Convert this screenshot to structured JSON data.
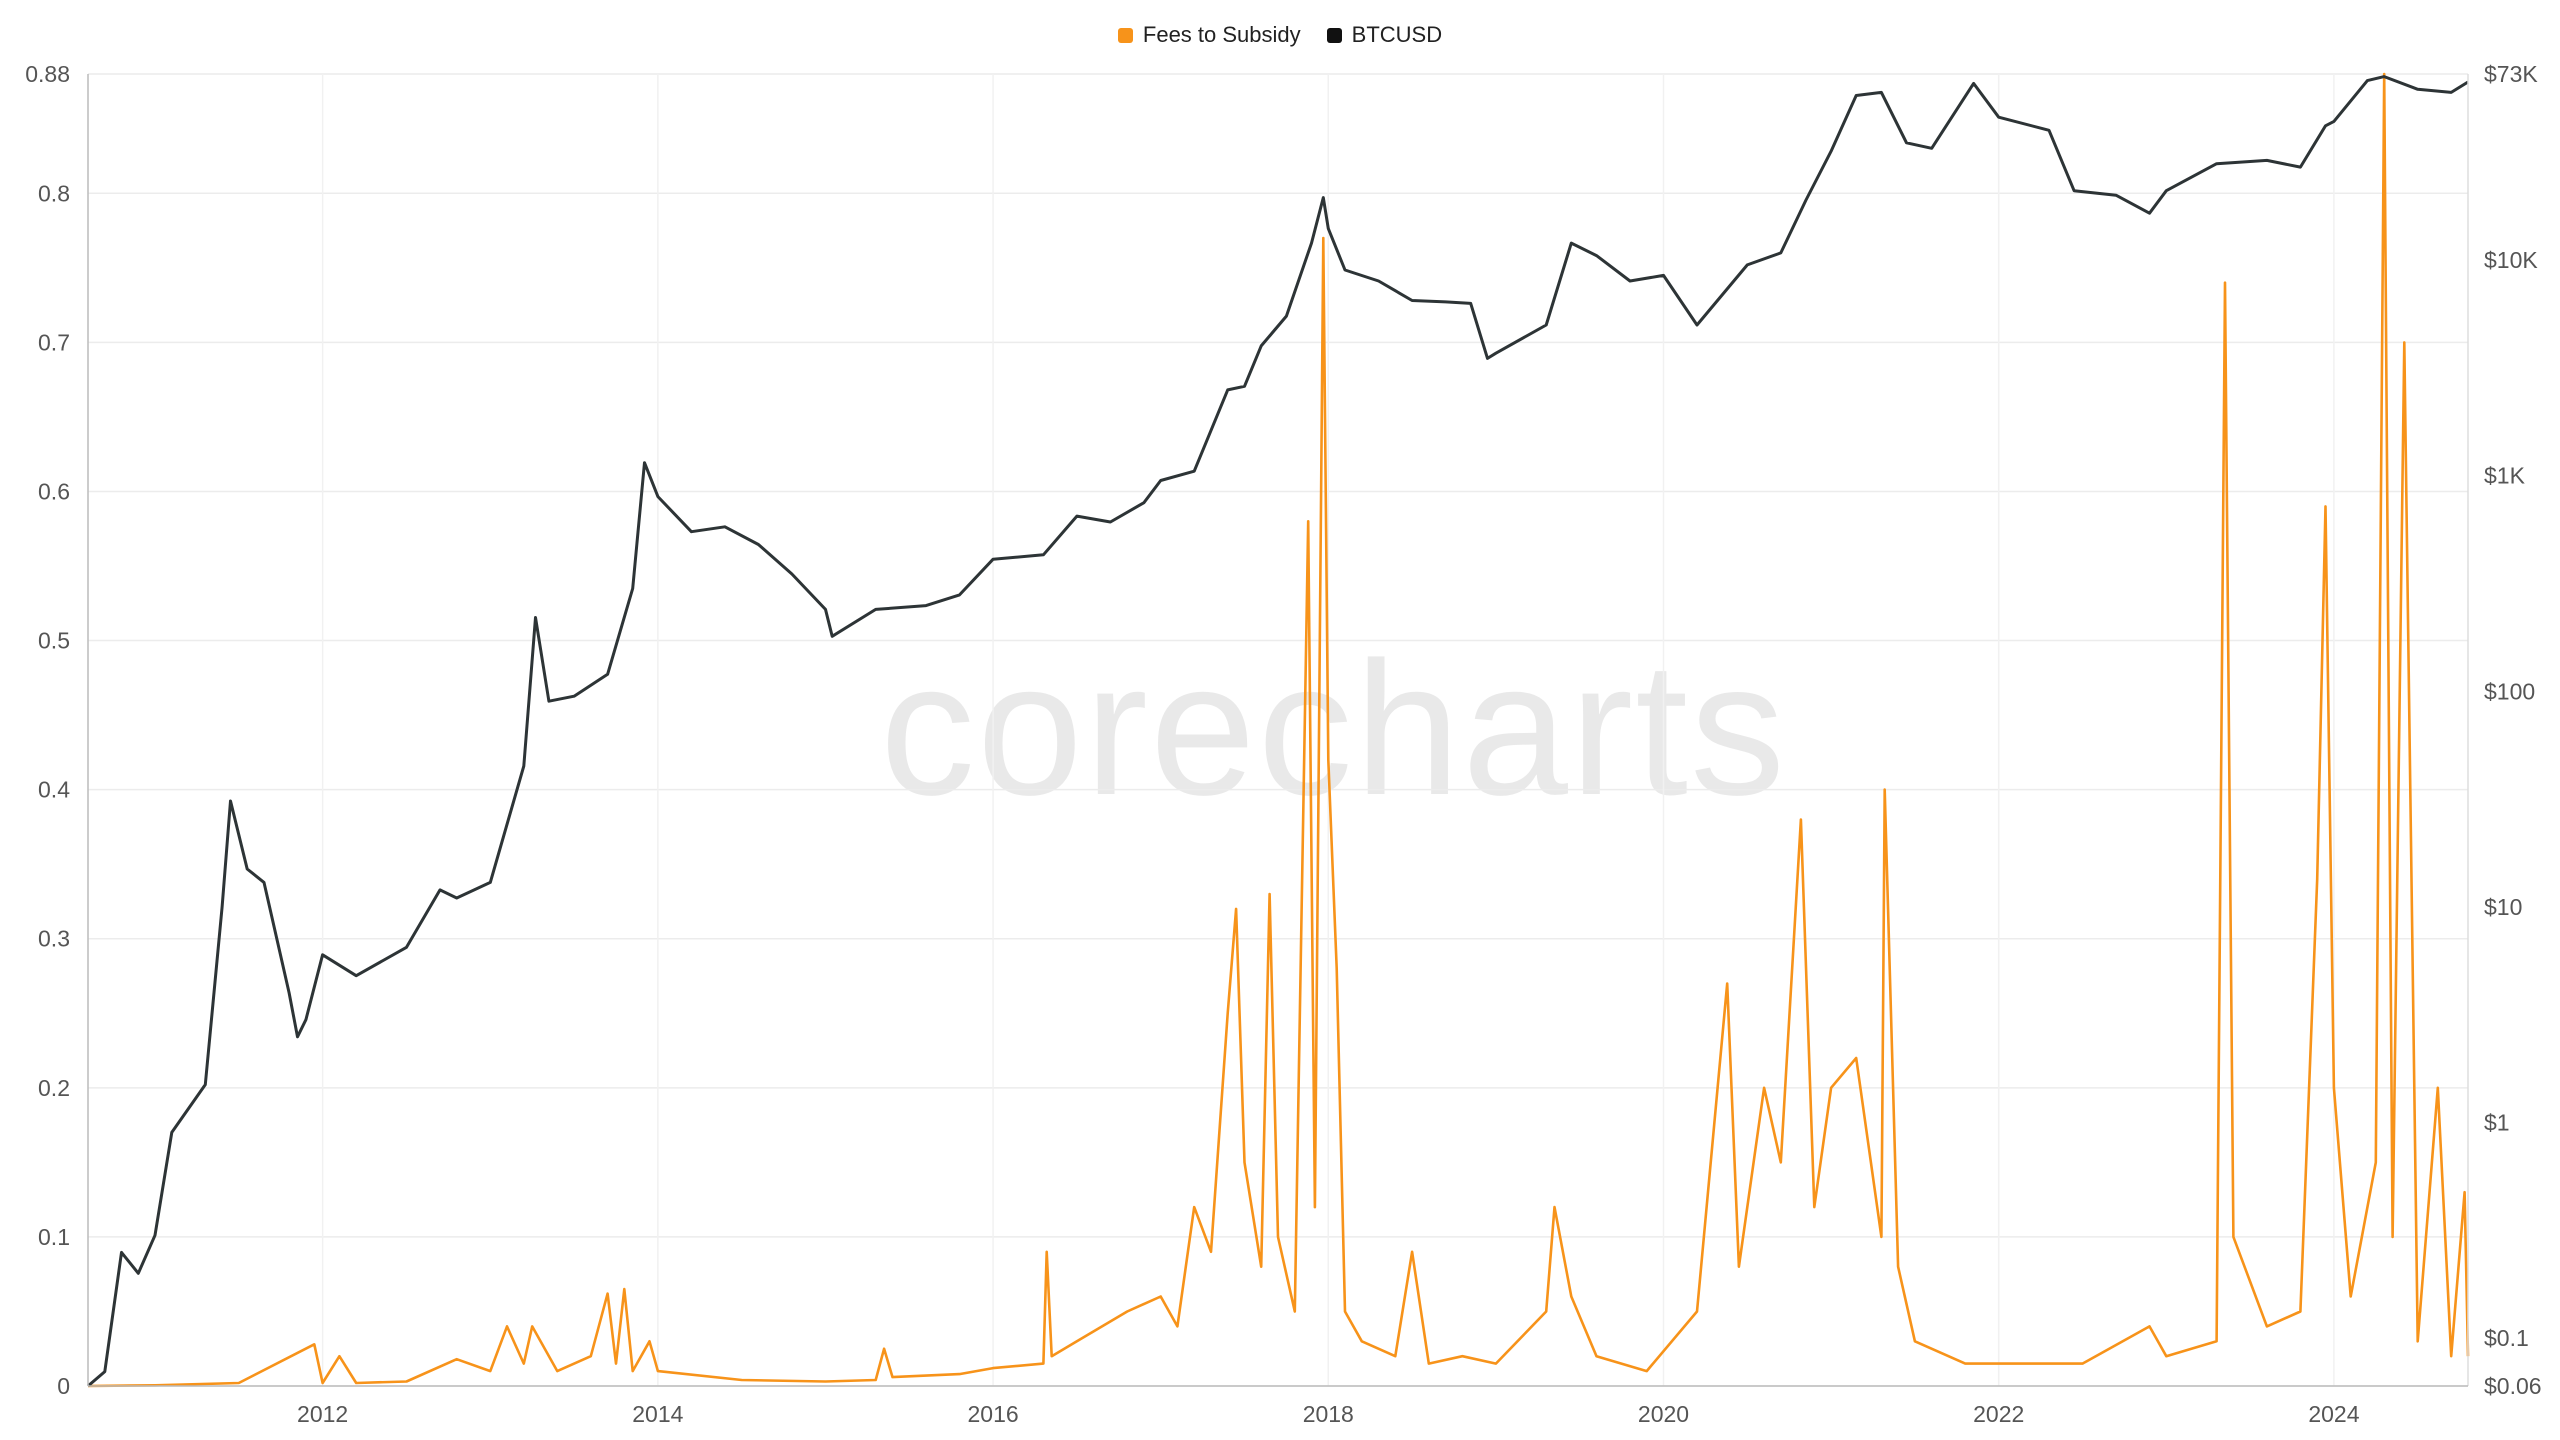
{
  "chart_data": {
    "type": "line",
    "title": "",
    "xlabel": "",
    "ylabel": "",
    "watermark": "corecharts",
    "legend_position": "top-center",
    "grid": true,
    "x_ticks": [
      "2012",
      "2014",
      "2016",
      "2018",
      "2020",
      "2022",
      "2024"
    ],
    "y_left": {
      "range": [
        0,
        0.88
      ],
      "ticks": [
        "0",
        "0.1",
        "0.2",
        "0.3",
        "0.4",
        "0.5",
        "0.6",
        "0.7",
        "0.8",
        "0.88"
      ]
    },
    "y_right": {
      "scale": "log",
      "range": [
        0.06,
        73000
      ],
      "ticks": [
        "$0.06",
        "$0.1",
        "$1",
        "$10",
        "$100",
        "$1K",
        "$10K",
        "$73K"
      ]
    },
    "x_range": [
      2010.6,
      2024.8
    ],
    "series": [
      {
        "name": "Fees to Subsidy",
        "axis": "left",
        "color": "#f7931a",
        "points": [
          [
            2010.6,
            0.0
          ],
          [
            2011.0,
            0.0005
          ],
          [
            2011.5,
            0.002
          ],
          [
            2011.95,
            0.028
          ],
          [
            2012.0,
            0.002
          ],
          [
            2012.1,
            0.02
          ],
          [
            2012.2,
            0.002
          ],
          [
            2012.5,
            0.003
          ],
          [
            2012.8,
            0.018
          ],
          [
            2013.0,
            0.01
          ],
          [
            2013.1,
            0.04
          ],
          [
            2013.2,
            0.015
          ],
          [
            2013.25,
            0.04
          ],
          [
            2013.4,
            0.01
          ],
          [
            2013.6,
            0.02
          ],
          [
            2013.7,
            0.062
          ],
          [
            2013.75,
            0.015
          ],
          [
            2013.8,
            0.065
          ],
          [
            2013.85,
            0.01
          ],
          [
            2013.95,
            0.03
          ],
          [
            2014.0,
            0.01
          ],
          [
            2014.5,
            0.004
          ],
          [
            2015.0,
            0.003
          ],
          [
            2015.3,
            0.004
          ],
          [
            2015.35,
            0.025
          ],
          [
            2015.4,
            0.006
          ],
          [
            2015.8,
            0.008
          ],
          [
            2016.0,
            0.012
          ],
          [
            2016.3,
            0.015
          ],
          [
            2016.32,
            0.09
          ],
          [
            2016.35,
            0.02
          ],
          [
            2016.5,
            0.03
          ],
          [
            2016.8,
            0.05
          ],
          [
            2017.0,
            0.06
          ],
          [
            2017.1,
            0.04
          ],
          [
            2017.2,
            0.12
          ],
          [
            2017.3,
            0.09
          ],
          [
            2017.4,
            0.25
          ],
          [
            2017.45,
            0.32
          ],
          [
            2017.5,
            0.15
          ],
          [
            2017.6,
            0.08
          ],
          [
            2017.65,
            0.33
          ],
          [
            2017.7,
            0.1
          ],
          [
            2017.8,
            0.05
          ],
          [
            2017.88,
            0.58
          ],
          [
            2017.92,
            0.12
          ],
          [
            2017.97,
            0.77
          ],
          [
            2018.0,
            0.42
          ],
          [
            2018.05,
            0.28
          ],
          [
            2018.1,
            0.05
          ],
          [
            2018.2,
            0.03
          ],
          [
            2018.4,
            0.02
          ],
          [
            2018.5,
            0.09
          ],
          [
            2018.6,
            0.015
          ],
          [
            2018.8,
            0.02
          ],
          [
            2019.0,
            0.015
          ],
          [
            2019.3,
            0.05
          ],
          [
            2019.35,
            0.12
          ],
          [
            2019.45,
            0.06
          ],
          [
            2019.6,
            0.02
          ],
          [
            2019.9,
            0.01
          ],
          [
            2020.2,
            0.05
          ],
          [
            2020.38,
            0.27
          ],
          [
            2020.45,
            0.08
          ],
          [
            2020.6,
            0.2
          ],
          [
            2020.7,
            0.15
          ],
          [
            2020.82,
            0.38
          ],
          [
            2020.9,
            0.12
          ],
          [
            2021.0,
            0.2
          ],
          [
            2021.15,
            0.22
          ],
          [
            2021.3,
            0.1
          ],
          [
            2021.32,
            0.4
          ],
          [
            2021.4,
            0.08
          ],
          [
            2021.5,
            0.03
          ],
          [
            2021.8,
            0.015
          ],
          [
            2022.5,
            0.015
          ],
          [
            2022.9,
            0.04
          ],
          [
            2023.0,
            0.02
          ],
          [
            2023.3,
            0.03
          ],
          [
            2023.35,
            0.74
          ],
          [
            2023.4,
            0.1
          ],
          [
            2023.6,
            0.04
          ],
          [
            2023.8,
            0.05
          ],
          [
            2023.9,
            0.34
          ],
          [
            2023.95,
            0.59
          ],
          [
            2024.0,
            0.2
          ],
          [
            2024.1,
            0.06
          ],
          [
            2024.25,
            0.15
          ],
          [
            2024.3,
            0.88
          ],
          [
            2024.35,
            0.1
          ],
          [
            2024.42,
            0.7
          ],
          [
            2024.5,
            0.03
          ],
          [
            2024.62,
            0.2
          ],
          [
            2024.7,
            0.02
          ],
          [
            2024.78,
            0.13
          ],
          [
            2024.8,
            0.02
          ]
        ]
      },
      {
        "name": "BTCUSD",
        "axis": "right",
        "color": "#2d3436",
        "points": [
          [
            2010.6,
            0.06
          ],
          [
            2010.7,
            0.07
          ],
          [
            2010.8,
            0.25
          ],
          [
            2010.9,
            0.2
          ],
          [
            2011.0,
            0.3
          ],
          [
            2011.1,
            0.9
          ],
          [
            2011.3,
            1.5
          ],
          [
            2011.4,
            10
          ],
          [
            2011.45,
            31
          ],
          [
            2011.55,
            15
          ],
          [
            2011.65,
            13
          ],
          [
            2011.8,
            4
          ],
          [
            2011.85,
            2.5
          ],
          [
            2011.9,
            3
          ],
          [
            2012.0,
            6
          ],
          [
            2012.2,
            4.8
          ],
          [
            2012.5,
            6.5
          ],
          [
            2012.7,
            12
          ],
          [
            2012.8,
            11
          ],
          [
            2013.0,
            13
          ],
          [
            2013.2,
            45
          ],
          [
            2013.27,
            220
          ],
          [
            2013.35,
            90
          ],
          [
            2013.5,
            95
          ],
          [
            2013.7,
            120
          ],
          [
            2013.85,
            300
          ],
          [
            2013.92,
            1150
          ],
          [
            2014.0,
            800
          ],
          [
            2014.2,
            550
          ],
          [
            2014.4,
            580
          ],
          [
            2014.6,
            480
          ],
          [
            2014.8,
            350
          ],
          [
            2015.0,
            240
          ],
          [
            2015.04,
            180
          ],
          [
            2015.3,
            240
          ],
          [
            2015.6,
            250
          ],
          [
            2015.8,
            280
          ],
          [
            2016.0,
            410
          ],
          [
            2016.3,
            430
          ],
          [
            2016.5,
            650
          ],
          [
            2016.7,
            610
          ],
          [
            2016.9,
            750
          ],
          [
            2017.0,
            950
          ],
          [
            2017.2,
            1050
          ],
          [
            2017.4,
            2500
          ],
          [
            2017.5,
            2600
          ],
          [
            2017.6,
            4000
          ],
          [
            2017.75,
            5500
          ],
          [
            2017.9,
            12000
          ],
          [
            2017.97,
            19500
          ],
          [
            2018.0,
            14000
          ],
          [
            2018.1,
            9000
          ],
          [
            2018.3,
            8000
          ],
          [
            2018.5,
            6500
          ],
          [
            2018.7,
            6400
          ],
          [
            2018.85,
            6300
          ],
          [
            2018.95,
            3500
          ],
          [
            2019.0,
            3700
          ],
          [
            2019.3,
            5000
          ],
          [
            2019.45,
            12000
          ],
          [
            2019.6,
            10500
          ],
          [
            2019.8,
            8000
          ],
          [
            2020.0,
            8500
          ],
          [
            2020.2,
            5000
          ],
          [
            2020.5,
            9500
          ],
          [
            2020.7,
            10800
          ],
          [
            2020.85,
            19000
          ],
          [
            2021.0,
            32000
          ],
          [
            2021.15,
            58000
          ],
          [
            2021.3,
            60000
          ],
          [
            2021.45,
            35000
          ],
          [
            2021.6,
            33000
          ],
          [
            2021.85,
            66000
          ],
          [
            2022.0,
            46000
          ],
          [
            2022.3,
            40000
          ],
          [
            2022.45,
            21000
          ],
          [
            2022.7,
            20000
          ],
          [
            2022.9,
            16500
          ],
          [
            2023.0,
            21000
          ],
          [
            2023.3,
            28000
          ],
          [
            2023.6,
            29000
          ],
          [
            2023.8,
            27000
          ],
          [
            2023.95,
            42000
          ],
          [
            2024.0,
            44000
          ],
          [
            2024.2,
            68000
          ],
          [
            2024.3,
            71000
          ],
          [
            2024.5,
            62000
          ],
          [
            2024.7,
            60000
          ],
          [
            2024.8,
            67000
          ]
        ]
      }
    ]
  }
}
